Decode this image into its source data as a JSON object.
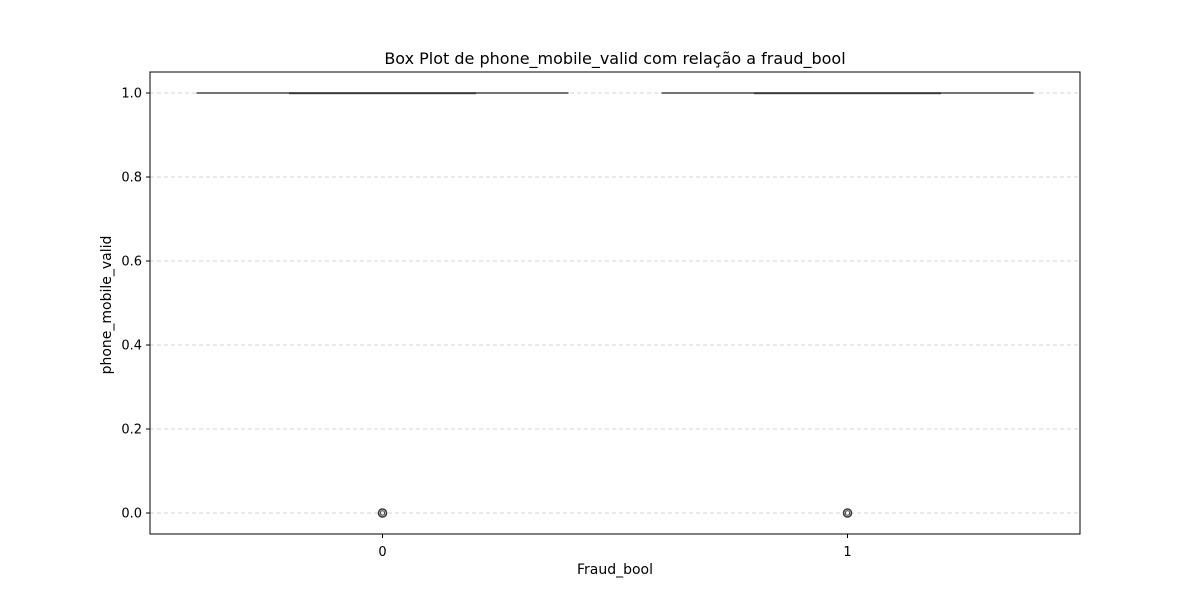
{
  "chart_data": {
    "type": "box",
    "title": "Box Plot de phone_mobile_valid com relação a fraud_bool",
    "xlabel": "Fraud_bool",
    "ylabel": "phone_mobile_valid",
    "categories": [
      "0",
      "1"
    ],
    "boxes": [
      {
        "category": "0",
        "whisker_low": 1.0,
        "q1": 1.0,
        "median": 1.0,
        "q3": 1.0,
        "whisker_high": 1.0,
        "outliers": [
          0.0
        ]
      },
      {
        "category": "1",
        "whisker_low": 1.0,
        "q1": 1.0,
        "median": 1.0,
        "q3": 1.0,
        "whisker_high": 1.0,
        "outliers": [
          0.0
        ]
      }
    ],
    "ylim": [
      -0.05,
      1.05
    ],
    "yticks": [
      0.0,
      0.2,
      0.4,
      0.6,
      0.8,
      1.0
    ],
    "ytick_labels": [
      "0.0",
      "0.2",
      "0.4",
      "0.6",
      "0.8",
      "1.0"
    ],
    "grid": {
      "y": true,
      "x": false,
      "style": "dashed"
    },
    "legend": "none",
    "colors": {
      "box_line": "#3f3f3f",
      "grid": "#c8c8c8",
      "axes": "#000000"
    }
  }
}
